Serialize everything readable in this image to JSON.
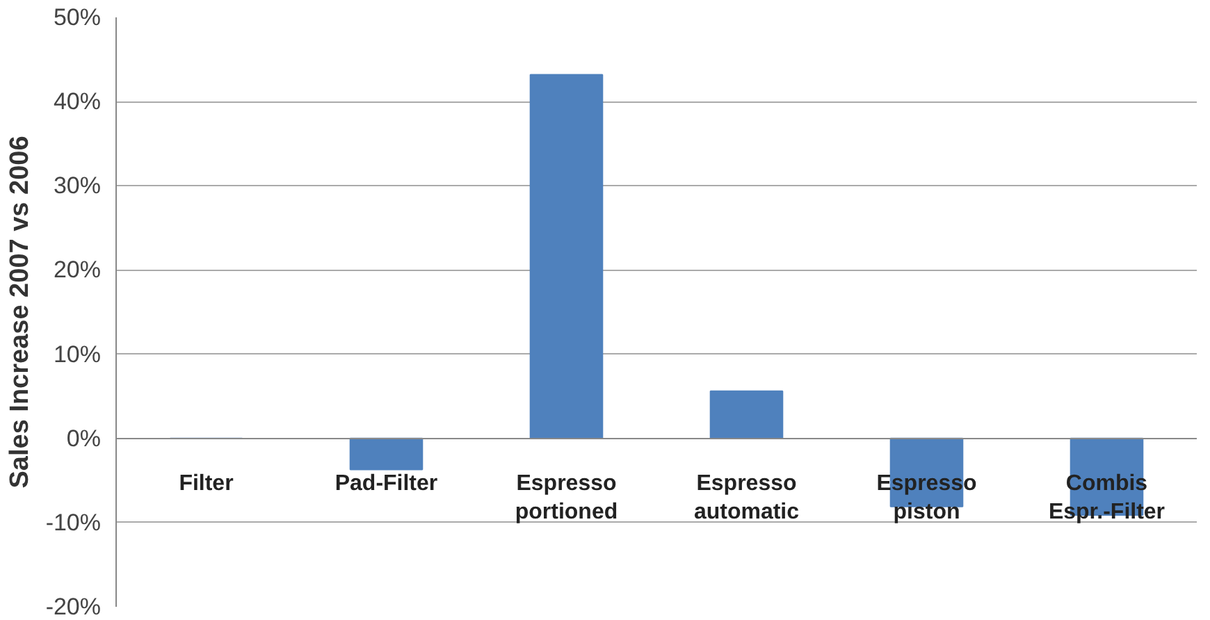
{
  "chart_data": {
    "type": "bar",
    "ylabel": "Sales Increase 2007 vs 2006",
    "categories": [
      "Filter",
      "Pad-Filter",
      "Espresso portioned",
      "Espresso automatic",
      "Espresso piston",
      "Combis Espr.-Filter"
    ],
    "values": [
      0,
      -3.7,
      43.2,
      5.6,
      -8.1,
      -9.1
    ],
    "color": "#4f81bd",
    "ylim": [
      -20,
      50
    ],
    "yticks": [
      {
        "value": -20,
        "label": "-20%"
      },
      {
        "value": -10,
        "label": "-10%"
      },
      {
        "value": 0,
        "label": "0%"
      },
      {
        "value": 10,
        "label": "10%"
      },
      {
        "value": 20,
        "label": "20%"
      },
      {
        "value": 30,
        "label": "30%"
      },
      {
        "value": 40,
        "label": "40%"
      },
      {
        "value": 50,
        "label": "50%"
      }
    ],
    "grid": "y"
  }
}
